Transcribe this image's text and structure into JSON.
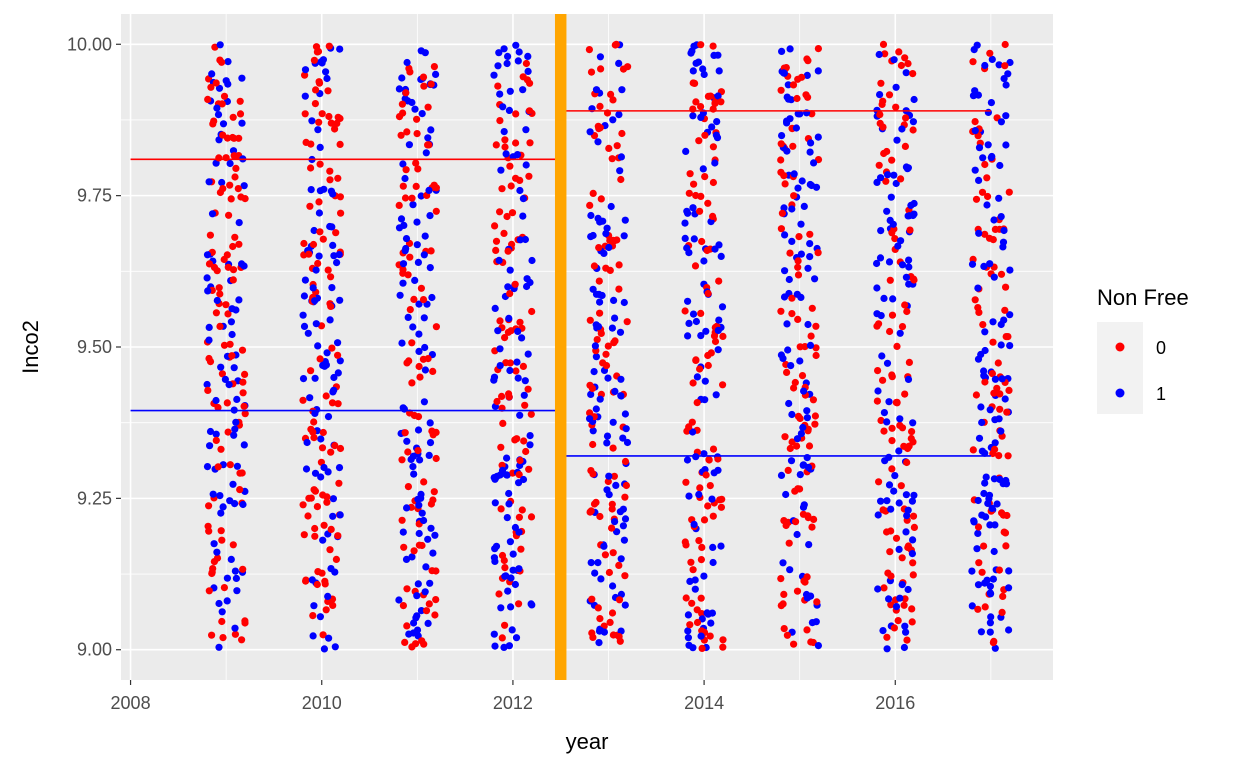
{
  "chart_data": {
    "type": "scatter",
    "xlabel": "year",
    "ylabel": "Inco2",
    "xlim": [
      2007.9,
      2017.65
    ],
    "ylim": [
      8.95,
      10.05
    ],
    "x_ticks": [
      2008,
      2010,
      2012,
      2014,
      2016
    ],
    "y_ticks": [
      9.0,
      9.25,
      9.5,
      9.75,
      10.0
    ],
    "x_tick_labels": [
      "2008",
      "2010",
      "2012",
      "2014",
      "2016"
    ],
    "y_tick_labels": [
      "9.00",
      "9.25",
      "9.50",
      "9.75",
      "10.00"
    ],
    "grid": true,
    "legend": {
      "title": "Non Free",
      "placement": "right",
      "entries": [
        {
          "label": "0",
          "color": "#ff0000"
        },
        {
          "label": "1",
          "color": "#0000ff"
        }
      ]
    },
    "points_per_year_approx": 200,
    "point_years": [
      2009,
      2010,
      2011,
      2012,
      2013,
      2014,
      2015,
      2016,
      2017
    ],
    "jitter_width": 0.2,
    "y_range_of_points": [
      9.0,
      10.0
    ],
    "series": [
      {
        "name": "0",
        "color": "#ff0000"
      },
      {
        "name": "1",
        "color": "#0000ff"
      }
    ],
    "reference_lines": [
      {
        "label": "mean group 0, 2009-2012",
        "x_start": 2008,
        "x_end": 2012.5,
        "y": 9.81,
        "color": "#ff0000"
      },
      {
        "label": "mean group 1, 2009-2012",
        "x_start": 2008,
        "x_end": 2012.5,
        "y": 9.395,
        "color": "#0000ff"
      },
      {
        "label": "mean group 0, 2013-2017",
        "x_start": 2012.5,
        "x_end": 2017,
        "y": 9.89,
        "color": "#ff0000"
      },
      {
        "label": "mean group 1, 2013-2017",
        "x_start": 2012.5,
        "x_end": 2017,
        "y": 9.32,
        "color": "#0000ff"
      }
    ],
    "vertical_band": {
      "x": 2012.5,
      "width": 0.12,
      "color": "#ffa500"
    }
  }
}
